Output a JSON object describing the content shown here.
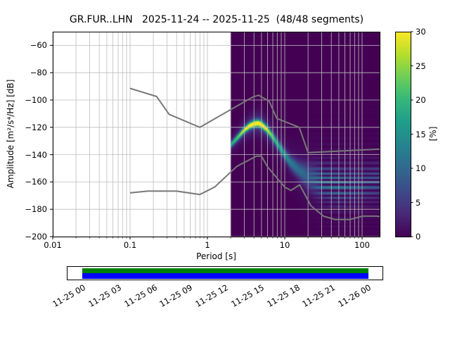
{
  "title": "GR.FUR..LHN   2025-11-24 -- 2025-11-25  (48/48 segments)",
  "axes": {
    "ylabel": "Amplitude [m²/s⁴/Hz] [dB]",
    "xlabel": "Period [s]",
    "x_scale": "log",
    "xlim": [
      0.01,
      170
    ],
    "ylim": [
      -200,
      -50
    ],
    "yticks": [
      -60,
      -80,
      -100,
      -120,
      -140,
      -160,
      -180,
      -200
    ],
    "ytick_labels": [
      "−60",
      "−80",
      "−100",
      "−120",
      "−140",
      "−160",
      "−180",
      "−200"
    ],
    "xticks": [
      0.01,
      0.1,
      1,
      10,
      100
    ],
    "xtick_labels": [
      "0.01",
      "0.1",
      "1",
      "10",
      "100"
    ],
    "grid": true
  },
  "colorbar": {
    "label": "[%]",
    "ticks": [
      0,
      5,
      10,
      15,
      20,
      25,
      30
    ],
    "max": 30,
    "viridis": [
      [
        0,
        68,
        1,
        84
      ],
      [
        0.11,
        72,
        40,
        120
      ],
      [
        0.22,
        62,
        73,
        137
      ],
      [
        0.33,
        49,
        104,
        142
      ],
      [
        0.44,
        38,
        130,
        142
      ],
      [
        0.56,
        31,
        158,
        137
      ],
      [
        0.67,
        53,
        183,
        121
      ],
      [
        0.78,
        110,
        206,
        88
      ],
      [
        0.89,
        181,
        222,
        43
      ],
      [
        1,
        253,
        231,
        37
      ]
    ]
  },
  "chart_data": {
    "type": "heatmap",
    "description": "PPSD probability histogram of power spectral density, percent probability per period/dB bin",
    "histogram_period_min": 2,
    "histogram_period_max": 170,
    "background_color": "#440154",
    "mode_curve_period_db": [
      [
        2,
        -133
      ],
      [
        2.5,
        -127
      ],
      [
        3,
        -122
      ],
      [
        3.5,
        -119
      ],
      [
        4,
        -117.5
      ],
      [
        4.5,
        -117
      ],
      [
        5,
        -118
      ],
      [
        6,
        -122
      ],
      [
        7,
        -127
      ],
      [
        8,
        -132
      ],
      [
        9,
        -136
      ],
      [
        10,
        -140
      ],
      [
        12,
        -146
      ],
      [
        15,
        -151
      ],
      [
        20,
        -156
      ],
      [
        30,
        -160
      ],
      [
        50,
        -162
      ],
      [
        80,
        -162
      ],
      [
        120,
        -161
      ],
      [
        170,
        -160
      ]
    ],
    "spread_db": [
      [
        2,
        1.5
      ],
      [
        4,
        1.8
      ],
      [
        6,
        2.0
      ],
      [
        8,
        2.2
      ],
      [
        10,
        2.5
      ],
      [
        15,
        4
      ],
      [
        20,
        6
      ],
      [
        30,
        8
      ],
      [
        50,
        8.5
      ],
      [
        170,
        8.5
      ]
    ],
    "peak_percent": [
      [
        2,
        16
      ],
      [
        2.5,
        20
      ],
      [
        3,
        26
      ],
      [
        3.5,
        29
      ],
      [
        4,
        30
      ],
      [
        5,
        29
      ],
      [
        6,
        25
      ],
      [
        7,
        20
      ],
      [
        8,
        17
      ],
      [
        10,
        14
      ],
      [
        12,
        11
      ],
      [
        15,
        9.5
      ],
      [
        20,
        8.5
      ],
      [
        30,
        11
      ],
      [
        50,
        11
      ],
      [
        80,
        9
      ],
      [
        120,
        8
      ],
      [
        170,
        8
      ]
    ],
    "noise_models": {
      "color": "#787878",
      "nhnm": [
        [
          0.1,
          -91.5
        ],
        [
          0.22,
          -97.4
        ],
        [
          0.32,
          -110.5
        ],
        [
          0.8,
          -120.0
        ],
        [
          3.8,
          -98.0
        ],
        [
          4.6,
          -96.5
        ],
        [
          6.3,
          -101.0
        ],
        [
          7.9,
          -113.5
        ],
        [
          15.4,
          -120.0
        ],
        [
          20.0,
          -138.5
        ],
        [
          170.0,
          -136.0
        ]
      ],
      "nlnm": [
        [
          0.1,
          -168.0
        ],
        [
          0.17,
          -166.7
        ],
        [
          0.4,
          -166.7
        ],
        [
          0.8,
          -169.2
        ],
        [
          1.24,
          -163.7
        ],
        [
          2.4,
          -148.6
        ],
        [
          4.3,
          -141.1
        ],
        [
          5.0,
          -141.1
        ],
        [
          6.0,
          -149.0
        ],
        [
          10.0,
          -163.8
        ],
        [
          12.0,
          -166.2
        ],
        [
          15.6,
          -162.1
        ],
        [
          21.9,
          -177.5
        ],
        [
          31.6,
          -185.0
        ],
        [
          45.0,
          -187.5
        ],
        [
          70.0,
          -187.5
        ],
        [
          101.0,
          -185.0
        ],
        [
          154.0,
          -185.0
        ],
        [
          170.0,
          -185.3
        ]
      ]
    }
  },
  "coverage": {
    "tick_labels": [
      "11-25 00",
      "11-25 03",
      "11-25 06",
      "11-25 09",
      "11-25 12",
      "11-25 15",
      "11-25 18",
      "11-25 21",
      "11-26 00"
    ],
    "bar_color_top": "#008000",
    "bar_color_bottom": "#0000ff"
  }
}
